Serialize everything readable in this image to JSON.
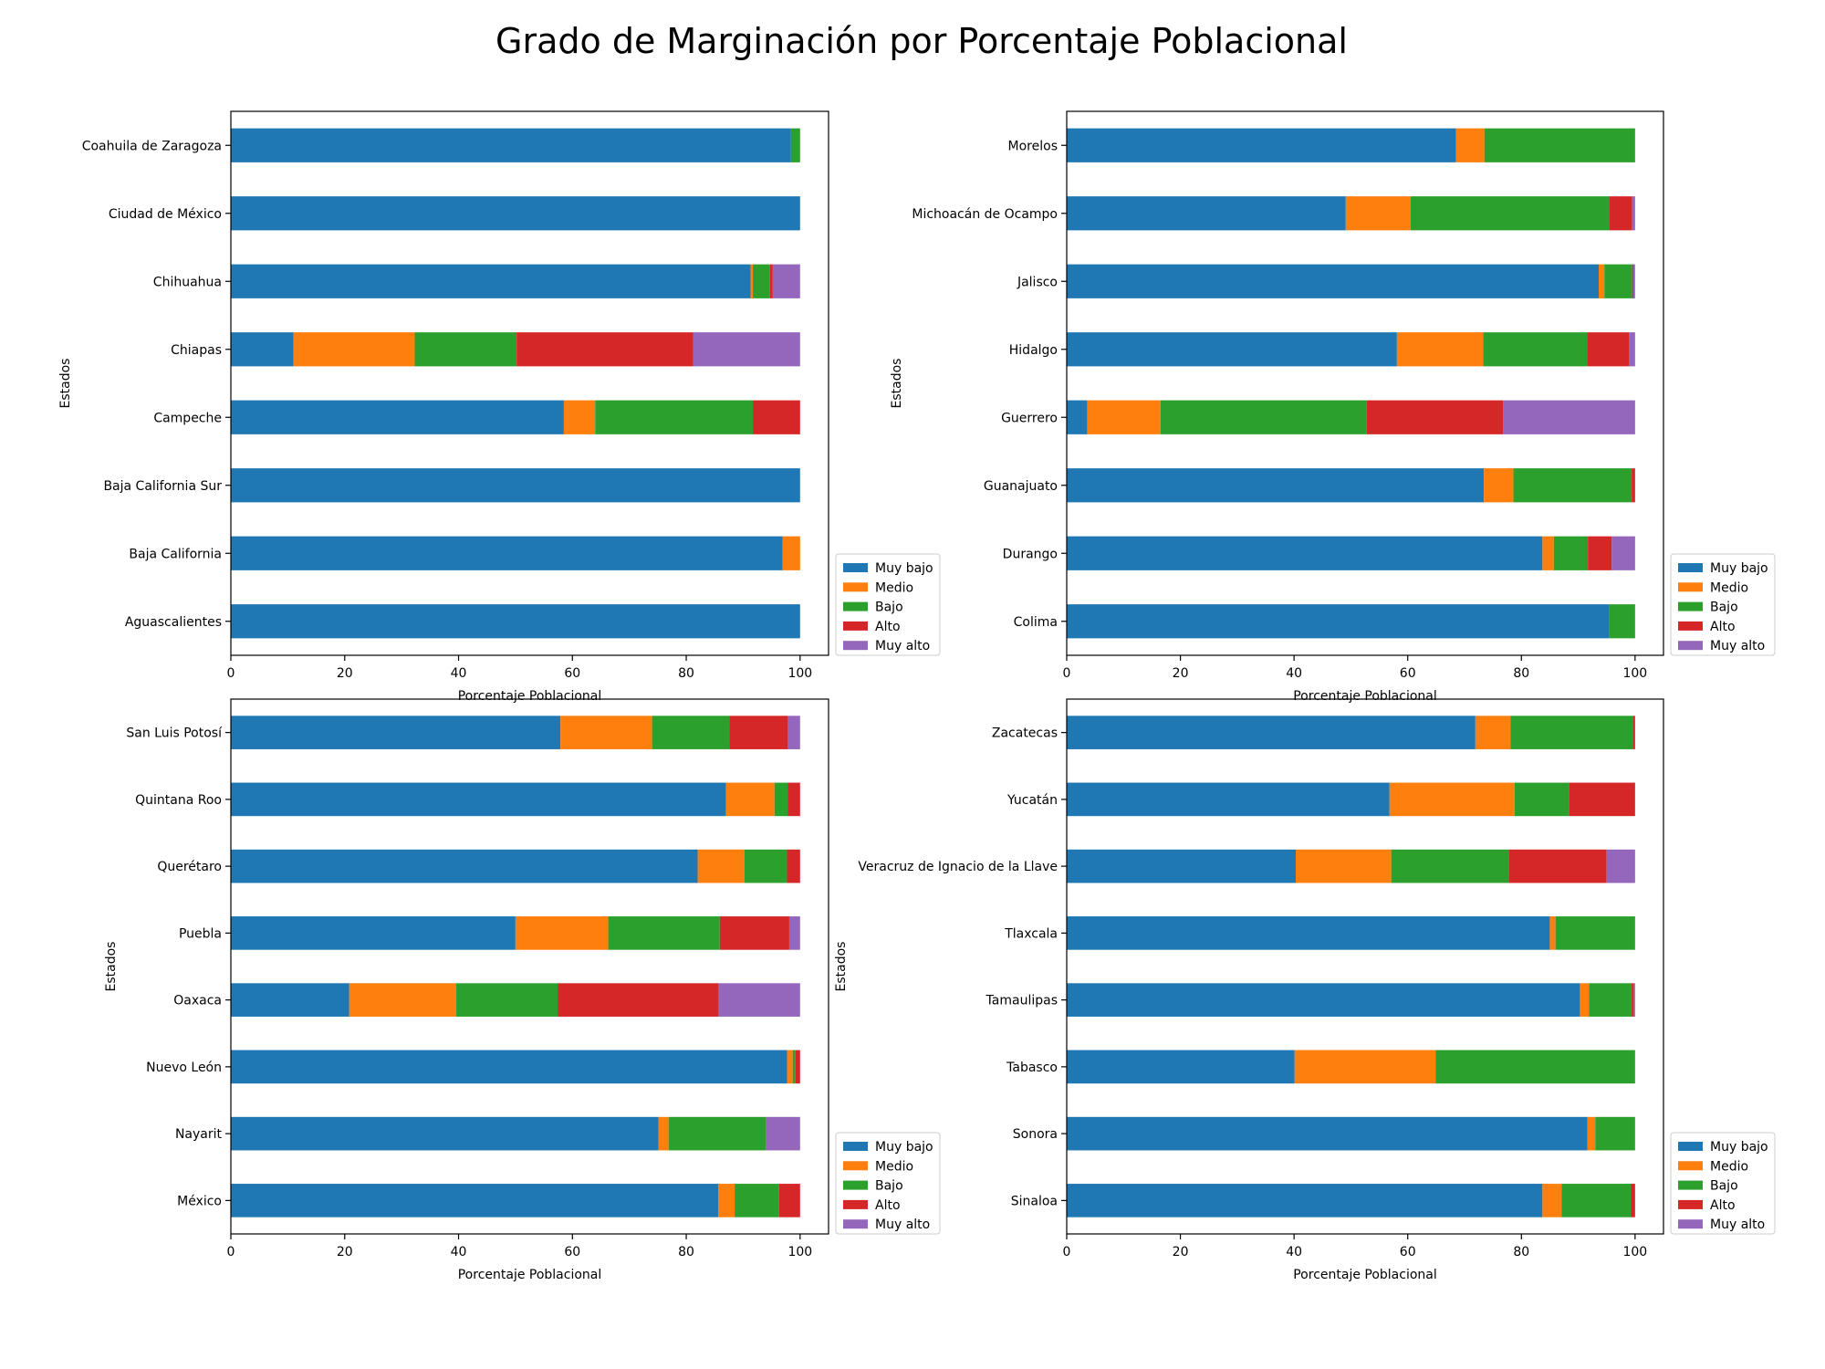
{
  "title": "Grado de Marginación por Porcentaje Poblacional",
  "legend_labels": [
    "Muy bajo",
    "Medio",
    "Bajo",
    "Alto",
    "Muy alto"
  ],
  "colors": {
    "Muy bajo": "#1f77b4",
    "Medio": "#ff7f0e",
    "Bajo": "#2ca02c",
    "Alto": "#d62728",
    "Muy alto": "#9467bd"
  },
  "chart_data": [
    {
      "type": "bar",
      "orientation": "horizontal",
      "stacked": true,
      "xlabel": "Porcentaje Poblacional",
      "ylabel": "Estados",
      "xlim": [
        0,
        105
      ],
      "xticks": [
        0,
        20,
        40,
        60,
        80,
        100
      ],
      "legend_position": "lower-right outside",
      "categories": [
        "Aguascalientes",
        "Baja California",
        "Baja California Sur",
        "Campeche",
        "Chiapas",
        "Chihuahua",
        "Ciudad de México",
        "Coahuila de Zaragoza"
      ],
      "series": [
        {
          "name": "Muy bajo",
          "values": [
            100,
            96.9,
            100,
            58.5,
            11,
            91.3,
            100,
            98.4
          ]
        },
        {
          "name": "Medio",
          "values": [
            0,
            3.1,
            0,
            5.5,
            21.3,
            0.4,
            0,
            0
          ]
        },
        {
          "name": "Bajo",
          "values": [
            0,
            0,
            0,
            27.7,
            17.9,
            3,
            0,
            1.6
          ]
        },
        {
          "name": "Alto",
          "values": [
            0,
            0,
            0,
            8.3,
            31,
            0.5,
            0,
            0
          ]
        },
        {
          "name": "Muy alto",
          "values": [
            0,
            0,
            0,
            0,
            18.8,
            4.8,
            0,
            0
          ]
        }
      ]
    },
    {
      "type": "bar",
      "orientation": "horizontal",
      "stacked": true,
      "xlabel": "Porcentaje Poblacional",
      "ylabel": "Estados",
      "xlim": [
        0,
        105
      ],
      "xticks": [
        0,
        20,
        40,
        60,
        80,
        100
      ],
      "legend_position": "lower-right outside",
      "categories": [
        "Colima",
        "Durango",
        "Guanajuato",
        "Guerrero",
        "Hidalgo",
        "Jalisco",
        "Michoacán de Ocampo",
        "Morelos"
      ],
      "series": [
        {
          "name": "Muy bajo",
          "values": [
            95.5,
            83.7,
            73.4,
            3.6,
            58.1,
            93.6,
            49.1,
            68.5
          ]
        },
        {
          "name": "Medio",
          "values": [
            0,
            2,
            5.2,
            12.9,
            15.2,
            1,
            11.4,
            5
          ]
        },
        {
          "name": "Bajo",
          "values": [
            4.5,
            6,
            20.8,
            36.3,
            18.3,
            4.9,
            34.9,
            26.5
          ]
        },
        {
          "name": "Alto",
          "values": [
            0,
            4.2,
            0.6,
            24,
            7.3,
            0.2,
            4.1,
            0
          ]
        },
        {
          "name": "Muy alto",
          "values": [
            0,
            4.1,
            0,
            23.2,
            1.1,
            0.3,
            0.5,
            0
          ]
        }
      ]
    },
    {
      "type": "bar",
      "orientation": "horizontal",
      "stacked": true,
      "xlabel": "Porcentaje Poblacional",
      "ylabel": "Estados",
      "xlim": [
        0,
        105
      ],
      "xticks": [
        0,
        20,
        40,
        60,
        80,
        100
      ],
      "legend_position": "lower-right outside",
      "categories": [
        "México",
        "Nayarit",
        "Nuevo León",
        "Oaxaca",
        "Puebla",
        "Querétaro",
        "Quintana Roo",
        "San Luis Potosí"
      ],
      "series": [
        {
          "name": "Muy bajo",
          "values": [
            85.6,
            75.1,
            97.7,
            20.8,
            50,
            82,
            87,
            57.9
          ]
        },
        {
          "name": "Medio",
          "values": [
            2.9,
            1.8,
            1,
            18.8,
            16.3,
            8.2,
            8.5,
            16.1
          ]
        },
        {
          "name": "Bajo",
          "values": [
            7.8,
            17.1,
            0.5,
            17.8,
            19.6,
            7.5,
            2.3,
            13.6
          ]
        },
        {
          "name": "Alto",
          "values": [
            3.7,
            0,
            0.8,
            28.3,
            12.2,
            2.3,
            2.2,
            10.3
          ]
        },
        {
          "name": "Muy alto",
          "values": [
            0,
            6,
            0,
            14.3,
            1.9,
            0,
            0,
            2.1
          ]
        }
      ]
    },
    {
      "type": "bar",
      "orientation": "horizontal",
      "stacked": true,
      "xlabel": "Porcentaje Poblacional",
      "ylabel": "Estados",
      "xlim": [
        0,
        105
      ],
      "xticks": [
        0,
        20,
        40,
        60,
        80,
        100
      ],
      "legend_position": "lower-right outside",
      "categories": [
        "Sinaloa",
        "Sonora",
        "Tabasco",
        "Tamaulipas",
        "Tlaxcala",
        "Veracruz de Ignacio de la Llave",
        "Yucatán",
        "Zacatecas"
      ],
      "series": [
        {
          "name": "Muy bajo",
          "values": [
            83.7,
            91.6,
            40.1,
            90.3,
            85,
            40.3,
            56.8,
            71.9
          ]
        },
        {
          "name": "Medio",
          "values": [
            3.4,
            1.4,
            24.8,
            1.6,
            1,
            16.8,
            22,
            6.2
          ]
        },
        {
          "name": "Bajo",
          "values": [
            12.2,
            7,
            35.1,
            7.5,
            14,
            20.7,
            9.6,
            21.5
          ]
        },
        {
          "name": "Alto",
          "values": [
            0.7,
            0,
            0,
            0.4,
            0,
            17.2,
            11.6,
            0.4
          ]
        },
        {
          "name": "Muy alto",
          "values": [
            0,
            0,
            0,
            0.2,
            0,
            5,
            0,
            0
          ]
        }
      ]
    }
  ]
}
